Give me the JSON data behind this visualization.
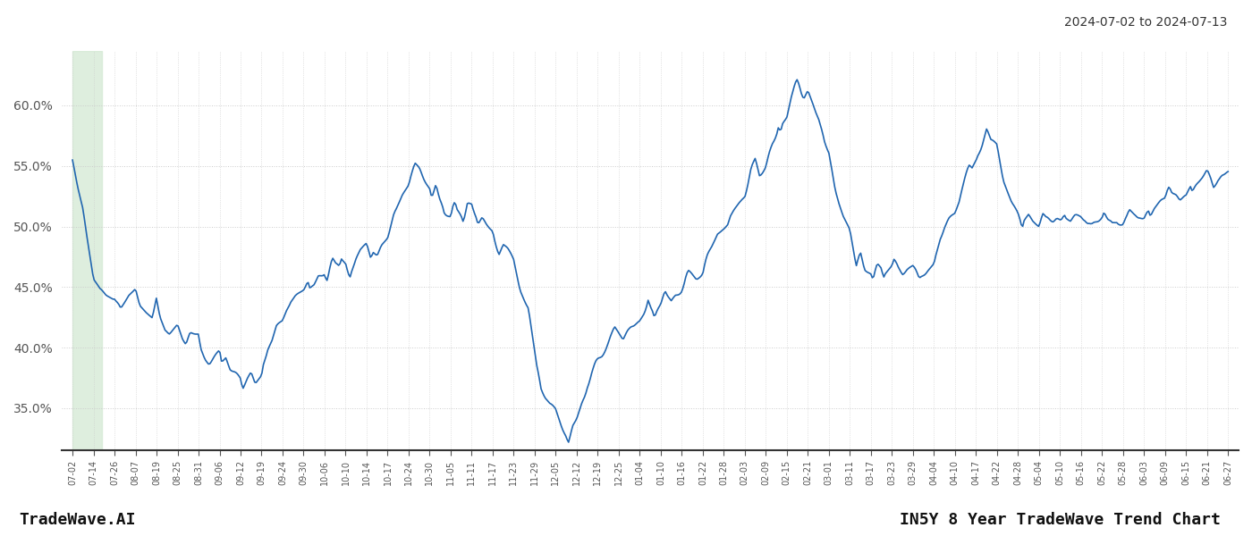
{
  "title_date_range": "2024-07-02 to 2024-07-13",
  "footer_left": "TradeWave.AI",
  "footer_right": "IN5Y 8 Year TradeWave Trend Chart",
  "line_color": "#2166b0",
  "line_width": 1.2,
  "highlight_color": "#d6ead6",
  "highlight_alpha": 0.8,
  "background_color": "#ffffff",
  "grid_color": "#cccccc",
  "ylim": [
    0.315,
    0.645
  ],
  "yticks": [
    0.35,
    0.4,
    0.45,
    0.5,
    0.55,
    0.6
  ],
  "x_labels": [
    "07-02",
    "07-14",
    "07-26",
    "08-07",
    "08-19",
    "08-25",
    "08-31",
    "09-06",
    "09-12",
    "09-19",
    "09-24",
    "09-30",
    "10-06",
    "10-10",
    "10-14",
    "10-17",
    "10-24",
    "10-30",
    "11-05",
    "11-11",
    "11-17",
    "11-23",
    "11-29",
    "12-05",
    "12-12",
    "12-19",
    "12-25",
    "01-04",
    "01-10",
    "01-16",
    "01-22",
    "01-28",
    "02-03",
    "02-09",
    "02-15",
    "02-21",
    "03-01",
    "03-11",
    "03-17",
    "03-23",
    "03-29",
    "04-04",
    "04-10",
    "04-17",
    "04-22",
    "04-28",
    "05-04",
    "05-10",
    "05-16",
    "05-22",
    "05-28",
    "06-03",
    "06-09",
    "06-15",
    "06-21",
    "06-27"
  ]
}
